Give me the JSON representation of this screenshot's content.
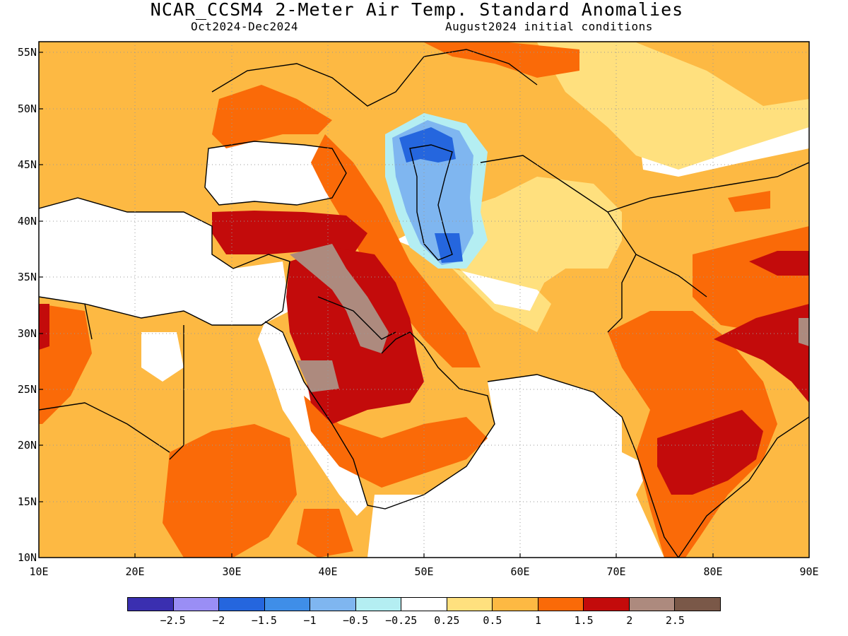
{
  "header": {
    "title": "NCAR_CCSM4 2-Meter Air Temp. Standard Anomalies",
    "period": "Oct2024-Dec2024",
    "init": "August2024 initial conditions"
  },
  "axes": {
    "lat_labels": [
      "55N",
      "50N",
      "45N",
      "40N",
      "35N",
      "30N",
      "25N",
      "20N",
      "15N",
      "10N"
    ],
    "lon_labels": [
      "10E",
      "20E",
      "30E",
      "40E",
      "50E",
      "60E",
      "70E",
      "80E",
      "90E"
    ],
    "lon_range": [
      10,
      90
    ],
    "lat_range": [
      10,
      56
    ],
    "grid": "dotted"
  },
  "colorbar": {
    "colors": [
      "#3a2fb0",
      "#9a8ef5",
      "#2566de",
      "#3f8ee8",
      "#7fb6f0",
      "#b4eef2",
      "#ffffff",
      "#ffe07e",
      "#fdb943",
      "#fa6a08",
      "#c30b0b",
      "#ad8a7e",
      "#7a5848"
    ],
    "labels": [
      "−2.5",
      "−2",
      "−1.5",
      "−1",
      "−0.5",
      "−0.25",
      "0.25",
      "0.5",
      "1",
      "1.5",
      "2",
      "2.5"
    ]
  },
  "legend_colors": {
    "neutral": "#ffffff",
    "weak_pos": "#ffe07e",
    "mod_pos": "#fdb943",
    "strong_pos": "#fa6a08",
    "very_strong_pos": "#c30b0b",
    "extreme_pos": "#ad8a7e",
    "neg_light": "#b4eef2",
    "neg_mod": "#7fb6f0",
    "neg_strong": "#2566de"
  }
}
